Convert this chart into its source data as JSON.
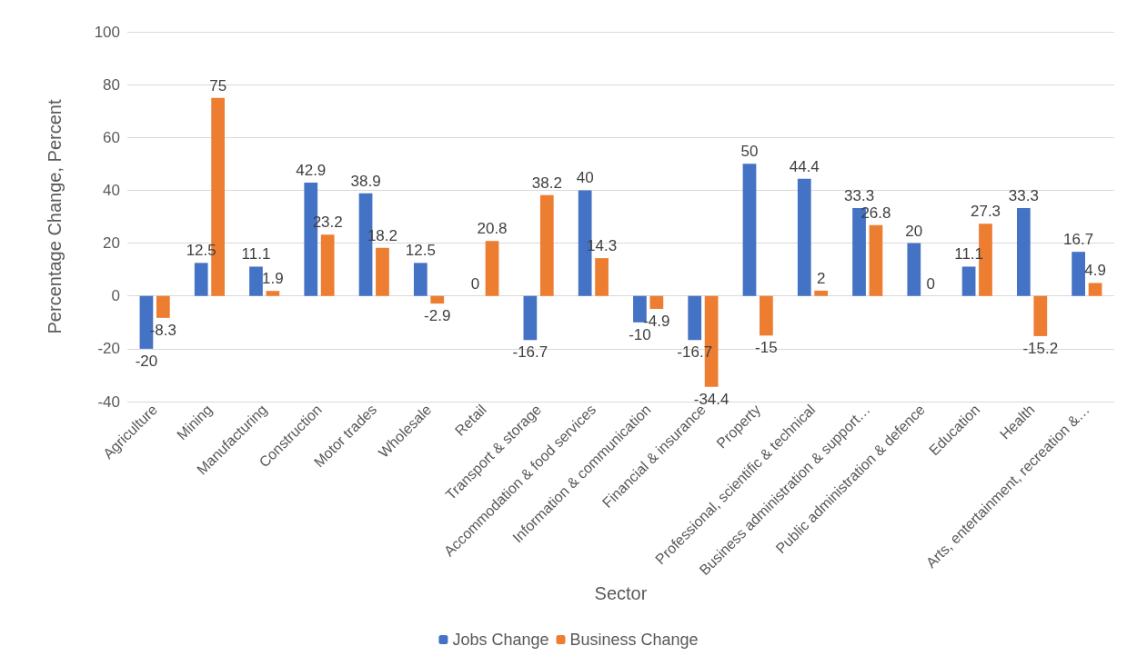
{
  "chart_data": {
    "type": "bar",
    "xlabel": "Sector",
    "ylabel": "Percentage Change, Percent",
    "categories": [
      "Agriculture",
      "Mining",
      "Manufacturing",
      "Construction",
      "Motor trades",
      "Wholesale",
      "Retail",
      "Transport & storage",
      "Accommodation & food services",
      "Information & communication",
      "Financial & insurance",
      "Property",
      "Professional, scientific & technical",
      "Business administration & support…",
      "Public administration & defence",
      "Education",
      "Health",
      "Arts, entertainment, recreation &…"
    ],
    "series": [
      {
        "name": "Jobs Change",
        "color": "#4472c4",
        "values": [
          -20,
          12.5,
          11.1,
          42.9,
          38.9,
          12.5,
          0,
          -16.7,
          40,
          -10,
          -16.7,
          50,
          44.4,
          33.3,
          20,
          11.1,
          33.3,
          16.7
        ]
      },
      {
        "name": "Business Change",
        "color": "#ed7d31",
        "values": [
          -8.3,
          75,
          1.9,
          23.2,
          18.2,
          -2.9,
          20.8,
          38.2,
          14.3,
          -4.9,
          -34.4,
          -15,
          2,
          26.8,
          0,
          27.3,
          -15.2,
          4.9
        ]
      }
    ],
    "ylim": [
      -40,
      100
    ],
    "yticks": [
      -40,
      -20,
      0,
      20,
      40,
      60,
      80,
      100
    ],
    "grid": "y",
    "legend": "bottom",
    "data_labels": true
  }
}
